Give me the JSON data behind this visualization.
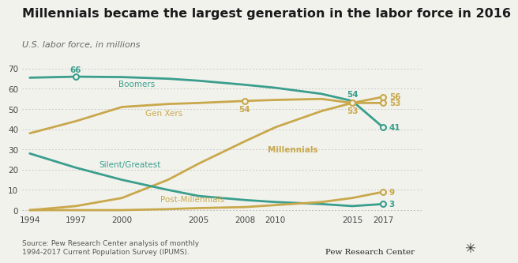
{
  "title": "Millennials became the largest generation in the labor force in 2016",
  "subtitle": "U.S. labor force, in millions",
  "source_text": "Source: Pew Research Center analysis of monthly\n1994-2017 Current Population Survey (IPUMS).",
  "boomer_x": [
    1994,
    1997,
    2000,
    2003,
    2005,
    2008,
    2010,
    2013,
    2015,
    2017
  ],
  "boomer_y": [
    65.5,
    66.0,
    65.8,
    65.0,
    64.0,
    62.0,
    60.5,
    57.5,
    54.0,
    41.0
  ],
  "genx_x": [
    1994,
    1997,
    2000,
    2003,
    2005,
    2008,
    2010,
    2013,
    2015,
    2017
  ],
  "genx_y": [
    38.0,
    44.0,
    51.0,
    52.5,
    53.0,
    54.0,
    54.5,
    55.0,
    53.0,
    53.0
  ],
  "mill_x": [
    1994,
    1997,
    2000,
    2003,
    2005,
    2008,
    2010,
    2013,
    2015,
    2017
  ],
  "mill_y": [
    0.0,
    2.0,
    6.0,
    15.0,
    23.0,
    34.0,
    41.0,
    49.0,
    53.0,
    56.0
  ],
  "silent_x": [
    1994,
    1997,
    2000,
    2003,
    2005,
    2008,
    2010,
    2013,
    2015,
    2017
  ],
  "silent_y": [
    28.0,
    21.0,
    15.0,
    10.0,
    7.0,
    5.0,
    4.0,
    3.0,
    2.0,
    3.0
  ],
  "post_x": [
    1994,
    1997,
    2000,
    2003,
    2005,
    2008,
    2010,
    2013,
    2015,
    2017
  ],
  "post_y": [
    0.0,
    0.0,
    0.0,
    0.5,
    1.0,
    1.5,
    2.5,
    4.0,
    6.0,
    9.0
  ],
  "boomer_color": "#3a9e8d",
  "genx_color": "#c8a84b",
  "mill_color": "#c8a84b",
  "silent_color": "#3a9e8d",
  "post_color": "#c8a84b",
  "bg_color": "#f2f2ed",
  "grid_color": "#bbbbbb",
  "xlim": [
    1993.5,
    2019.5
  ],
  "ylim": [
    -1,
    74
  ],
  "yticks": [
    0,
    10,
    20,
    30,
    40,
    50,
    60,
    70
  ],
  "xticks": [
    1994,
    1997,
    2000,
    2005,
    2008,
    2010,
    2015,
    2017
  ],
  "xtick_labels": [
    "1994",
    "1997",
    "2000",
    "2005",
    "2008",
    "2010",
    "2015",
    "2017"
  ]
}
